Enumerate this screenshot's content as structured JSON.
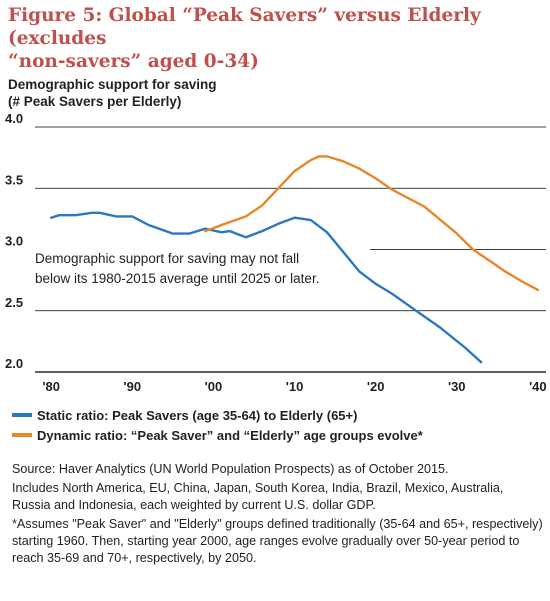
{
  "figure": {
    "title_line1": "Figure 5: Global “Peak Savers” versus Elderly (excludes",
    "title_line2": "“non-savers” aged 0-34)"
  },
  "colors": {
    "title": "#c0504d",
    "static": "#2b78c0",
    "dynamic": "#e8872a",
    "grid": "#000000",
    "text": "#231f20"
  },
  "chart_data": {
    "type": "line",
    "ylabel_line1": "Demographic support for saving",
    "ylabel_line2": "(# Peak Savers per Elderly)",
    "ylim": [
      2.0,
      4.0
    ],
    "xlim": [
      1978,
      2041
    ],
    "y_ticks": [
      "4.0",
      "3.5",
      "3.0",
      "2.5",
      "2.0"
    ],
    "y_tick_values": [
      4.0,
      3.5,
      3.0,
      2.5,
      2.0
    ],
    "x_ticks": [
      "'80",
      "'90",
      "'00",
      "'10",
      "'20",
      "'30",
      "'40"
    ],
    "x_tick_values": [
      1980,
      1990,
      2000,
      2010,
      2020,
      2030,
      2040
    ],
    "grid": "horizontal",
    "annotation_line1": "Demographic support for saving may not fall",
    "annotation_line2": "below its 1980-2015 average until 2025 or later.",
    "series": [
      {
        "name": "Static ratio: Peak Savers (age 35-64) to Elderly (65+)",
        "color": "#2b78c0",
        "x": [
          1980,
          1981,
          1983,
          1985,
          1986,
          1988,
          1990,
          1992,
          1995,
          1997,
          1999,
          2001,
          2002,
          2004,
          2006,
          2008,
          2010,
          2012,
          2014,
          2016,
          2018,
          2020,
          2022,
          2025,
          2028,
          2031,
          2033
        ],
        "y": [
          3.26,
          3.28,
          3.28,
          3.3,
          3.3,
          3.27,
          3.27,
          3.2,
          3.13,
          3.13,
          3.17,
          3.14,
          3.15,
          3.1,
          3.15,
          3.21,
          3.26,
          3.24,
          3.14,
          2.98,
          2.82,
          2.72,
          2.64,
          2.5,
          2.36,
          2.2,
          2.08
        ]
      },
      {
        "name": "Dynamic ratio: “Peak Saver” and “Elderly” age groups evolve*",
        "color": "#e8872a",
        "x": [
          1999,
          2001,
          2004,
          2006,
          2008,
          2010,
          2012,
          2013,
          2014,
          2016,
          2018,
          2020,
          2022,
          2024,
          2026,
          2028,
          2030,
          2032,
          2034,
          2036,
          2038,
          2040
        ],
        "y": [
          3.15,
          3.2,
          3.27,
          3.36,
          3.5,
          3.64,
          3.73,
          3.76,
          3.76,
          3.72,
          3.66,
          3.58,
          3.49,
          3.42,
          3.35,
          3.24,
          3.13,
          3.0,
          2.91,
          2.82,
          2.74,
          2.67
        ]
      }
    ]
  },
  "legend": {
    "static": "Static ratio: Peak Savers (age 35-64) to Elderly (65+)",
    "dynamic": "Dynamic ratio: “Peak Saver” and “Elderly” age groups evolve*"
  },
  "source": {
    "line1": "Source: Haver Analytics (UN World Population Prospects) as of October 2015.",
    "line2": "Includes North America, EU, China, Japan, South Korea, India, Brazil, Mexico, Australia, Russia and Indonesia, each weighted by current U.S. dollar GDP.",
    "footnote": "*Assumes \"Peak Saver\" and \"Elderly\" groups defined  traditionally (35-64 and 65+, respectively) starting 1960. Then, starting year 2000, age ranges evolve gradually over 50-year period to reach 35-69 and 70+, respectively, by 2050."
  }
}
